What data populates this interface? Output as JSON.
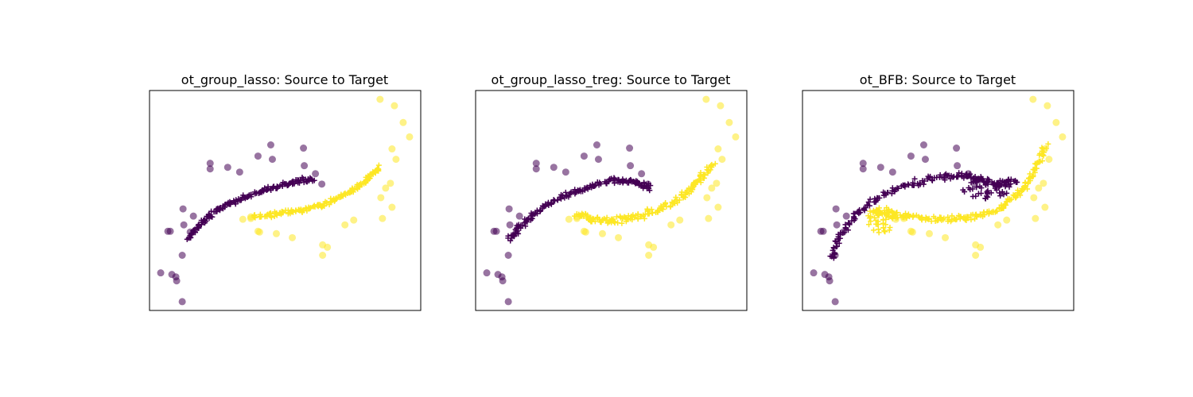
{
  "colors": {
    "source": "#440154",
    "target": "#fde725",
    "transported_source": "#440154",
    "transported_target": "#fde725"
  },
  "chart_data": [
    {
      "type": "scatter",
      "title": "ot_group_lasso: Source to Target",
      "xlabel": "",
      "ylabel": "",
      "xlim": [
        0,
        340
      ],
      "ylim": [
        -275,
        0
      ],
      "grid": false,
      "series": [
        {
          "marker": "circle",
          "color": "#440154",
          "alpha": 0.55,
          "points": [
            [
              14,
              -228
            ],
            [
              23,
              -176
            ],
            [
              26,
              -176
            ],
            [
              28,
              -230
            ],
            [
              33,
              -233
            ],
            [
              34,
              -238
            ],
            [
              41,
              -206
            ],
            [
              41,
              -264
            ],
            [
              43,
              -168
            ],
            [
              42,
              -148
            ],
            [
              51,
              -177
            ],
            [
              55,
              -157
            ],
            [
              76,
              -91
            ],
            [
              76,
              -98
            ],
            [
              98,
              -96
            ],
            [
              113,
              -102
            ],
            [
              136,
              -82
            ],
            [
              152,
              -68
            ],
            [
              154,
              -86
            ],
            [
              193,
              -72
            ],
            [
              194,
              -94
            ],
            [
              208,
              -104
            ],
            [
              216,
              -117
            ]
          ]
        },
        {
          "marker": "circle",
          "color": "#fde725",
          "alpha": 0.55,
          "points": [
            [
              289,
              -11
            ],
            [
              307,
              -19
            ],
            [
              318,
              -40
            ],
            [
              326,
              -58
            ],
            [
              304,
              -73
            ],
            [
              309,
              -86
            ],
            [
              302,
              -116
            ],
            [
              296,
              -122
            ],
            [
              304,
              -146
            ],
            [
              290,
              -134
            ],
            [
              292,
              -160
            ],
            [
              256,
              -162
            ],
            [
              245,
              -168
            ],
            [
              217,
              -193
            ],
            [
              223,
              -196
            ],
            [
              217,
              -206
            ],
            [
              179,
              -184
            ],
            [
              159,
              -179
            ],
            [
              138,
              -177
            ],
            [
              117,
              -161
            ],
            [
              127,
              -160
            ],
            [
              136,
              -176
            ],
            [
              127,
              -158
            ]
          ]
        },
        {
          "marker": "plus",
          "color": "#440154",
          "alpha": 1,
          "curve": [
            [
              48,
              -186
            ],
            [
              65,
              -165
            ],
            [
              90,
              -146
            ],
            [
              120,
              -133
            ],
            [
              150,
              -123
            ],
            [
              180,
              -115
            ],
            [
              205,
              -110
            ]
          ],
          "n": 160,
          "spread": 2.5
        },
        {
          "marker": "plus",
          "color": "#fde725",
          "alpha": 1,
          "curve": [
            [
              130,
              -159
            ],
            [
              160,
              -154
            ],
            [
              190,
              -150
            ],
            [
              220,
              -142
            ],
            [
              250,
              -128
            ],
            [
              272,
              -112
            ],
            [
              288,
              -96
            ]
          ],
          "n": 160,
          "spread": 2.5
        }
      ]
    },
    {
      "type": "scatter",
      "title": "ot_group_lasso_treg: Source to Target",
      "xlabel": "",
      "ylabel": "",
      "xlim": [
        0,
        340
      ],
      "ylim": [
        -275,
        0
      ],
      "grid": false,
      "series": [
        {
          "marker": "circle",
          "color": "#440154",
          "alpha": 0.55,
          "points": [
            [
              14,
              -228
            ],
            [
              23,
              -176
            ],
            [
              26,
              -176
            ],
            [
              28,
              -230
            ],
            [
              33,
              -233
            ],
            [
              34,
              -238
            ],
            [
              41,
              -206
            ],
            [
              41,
              -264
            ],
            [
              43,
              -168
            ],
            [
              42,
              -148
            ],
            [
              51,
              -177
            ],
            [
              55,
              -157
            ],
            [
              76,
              -91
            ],
            [
              76,
              -98
            ],
            [
              98,
              -96
            ],
            [
              113,
              -102
            ],
            [
              136,
              -82
            ],
            [
              152,
              -68
            ],
            [
              154,
              -86
            ],
            [
              193,
              -72
            ],
            [
              194,
              -94
            ],
            [
              208,
              -104
            ],
            [
              216,
              -117
            ]
          ]
        },
        {
          "marker": "circle",
          "color": "#fde725",
          "alpha": 0.55,
          "points": [
            [
              289,
              -11
            ],
            [
              307,
              -19
            ],
            [
              318,
              -40
            ],
            [
              326,
              -58
            ],
            [
              304,
              -73
            ],
            [
              309,
              -86
            ],
            [
              302,
              -116
            ],
            [
              296,
              -122
            ],
            [
              304,
              -146
            ],
            [
              290,
              -134
            ],
            [
              292,
              -160
            ],
            [
              256,
              -162
            ],
            [
              245,
              -168
            ],
            [
              217,
              -193
            ],
            [
              223,
              -196
            ],
            [
              217,
              -206
            ],
            [
              179,
              -184
            ],
            [
              159,
              -179
            ],
            [
              138,
              -177
            ],
            [
              117,
              -161
            ],
            [
              127,
              -160
            ],
            [
              136,
              -176
            ],
            [
              127,
              -158
            ]
          ]
        },
        {
          "marker": "plus",
          "color": "#440154",
          "alpha": 1,
          "curve": [
            [
              42,
              -186
            ],
            [
              60,
              -165
            ],
            [
              85,
              -146
            ],
            [
              115,
              -131
            ],
            [
              145,
              -120
            ],
            [
              175,
              -112
            ],
            [
              200,
              -114
            ],
            [
              218,
              -122
            ]
          ],
          "n": 170,
          "spread": 3
        },
        {
          "marker": "plus",
          "color": "#fde725",
          "alpha": 1,
          "curve": [
            [
              128,
              -154
            ],
            [
              150,
              -162
            ],
            [
              175,
              -162
            ],
            [
              205,
              -157
            ],
            [
              235,
              -147
            ],
            [
              262,
              -130
            ],
            [
              280,
              -112
            ],
            [
              297,
              -93
            ]
          ],
          "n": 170,
          "spread": 3.5
        }
      ]
    },
    {
      "type": "scatter",
      "title": "ot_BFB: Source to Target",
      "xlabel": "",
      "ylabel": "",
      "xlim": [
        0,
        340
      ],
      "ylim": [
        -275,
        0
      ],
      "grid": false,
      "series": [
        {
          "marker": "circle",
          "color": "#440154",
          "alpha": 0.55,
          "points": [
            [
              14,
              -228
            ],
            [
              23,
              -176
            ],
            [
              26,
              -176
            ],
            [
              28,
              -230
            ],
            [
              33,
              -233
            ],
            [
              34,
              -238
            ],
            [
              41,
              -206
            ],
            [
              41,
              -264
            ],
            [
              43,
              -168
            ],
            [
              42,
              -148
            ],
            [
              51,
              -177
            ],
            [
              55,
              -157
            ],
            [
              76,
              -91
            ],
            [
              76,
              -98
            ],
            [
              98,
              -96
            ],
            [
              113,
              -102
            ],
            [
              136,
              -82
            ],
            [
              152,
              -68
            ],
            [
              154,
              -86
            ],
            [
              193,
              -72
            ],
            [
              194,
              -94
            ],
            [
              208,
              -104
            ],
            [
              216,
              -117
            ]
          ]
        },
        {
          "marker": "circle",
          "color": "#fde725",
          "alpha": 0.55,
          "points": [
            [
              289,
              -11
            ],
            [
              307,
              -19
            ],
            [
              318,
              -40
            ],
            [
              326,
              -58
            ],
            [
              304,
              -73
            ],
            [
              309,
              -86
            ],
            [
              302,
              -116
            ],
            [
              296,
              -122
            ],
            [
              304,
              -146
            ],
            [
              290,
              -134
            ],
            [
              292,
              -160
            ],
            [
              256,
              -162
            ],
            [
              245,
              -168
            ],
            [
              217,
              -193
            ],
            [
              223,
              -196
            ],
            [
              217,
              -206
            ],
            [
              179,
              -184
            ],
            [
              159,
              -179
            ],
            [
              138,
              -177
            ],
            [
              117,
              -161
            ],
            [
              127,
              -160
            ],
            [
              136,
              -176
            ],
            [
              127,
              -158
            ]
          ]
        },
        {
          "marker": "plus",
          "color": "#440154",
          "alpha": 1,
          "curve": [
            [
              36,
              -212
            ],
            [
              48,
              -180
            ],
            [
              70,
              -152
            ],
            [
              100,
              -130
            ],
            [
              135,
              -118
            ],
            [
              170,
              -108
            ],
            [
              200,
              -106
            ],
            [
              222,
              -110
            ],
            [
              245,
              -120
            ],
            [
              268,
              -112
            ]
          ],
          "n": 190,
          "spread": 3.5,
          "cluster": {
            "cx": 230,
            "cy": -123,
            "rx": 30,
            "ry": 14,
            "n": 45
          }
        },
        {
          "marker": "plus",
          "color": "#fde725",
          "alpha": 1,
          "curve": [
            [
              88,
              -152
            ],
            [
              120,
              -156
            ],
            [
              155,
              -160
            ],
            [
              190,
              -160
            ],
            [
              220,
              -158
            ],
            [
              250,
              -146
            ],
            [
              275,
              -126
            ],
            [
              292,
              -100
            ],
            [
              305,
              -70
            ]
          ],
          "n": 180,
          "spread": 3,
          "cluster": {
            "cx": 100,
            "cy": -162,
            "rx": 22,
            "ry": 16,
            "n": 55
          }
        }
      ]
    }
  ]
}
